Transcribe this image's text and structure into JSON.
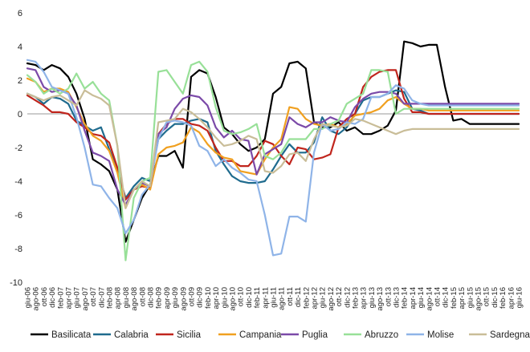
{
  "chart_data": {
    "type": "line",
    "title": "",
    "xlabel": "",
    "ylabel": "",
    "ylim": [
      -10,
      6
    ],
    "yticks": [
      -10,
      -8,
      -6,
      -4,
      -2,
      0,
      2,
      4,
      6
    ],
    "grid": false,
    "legend_position": "bottom",
    "x": [
      "giu-06",
      "ago-06",
      "ott-06",
      "dic-06",
      "feb-07",
      "apr-07",
      "giu-07",
      "ago-07",
      "ott-07",
      "dic-07",
      "feb-08",
      "apr-08",
      "giu-08",
      "ago-08",
      "ott-08",
      "dic-08",
      "feb-09",
      "apr-09",
      "giu-09",
      "ago-09",
      "ott-09",
      "dic-09",
      "feb-10",
      "apr-10",
      "giu-10",
      "ago-10",
      "ott-10",
      "dic-10",
      "feb-11",
      "apr-11",
      "giu-11",
      "ago-11",
      "ott-11",
      "dic-11",
      "feb-12",
      "apr-12",
      "giu-12",
      "ago-12",
      "ott-12",
      "dic-12",
      "feb-13",
      "apr-13",
      "giu-13",
      "ago-13",
      "ott-13",
      "dic-13",
      "feb-14",
      "apr-14",
      "giu-14",
      "ago-14",
      "ott-14",
      "dic-14",
      "feb-15",
      "apr-15",
      "giu-15",
      "ago-15",
      "ott-15",
      "dic-15",
      "feb-16",
      "apr-16",
      "giu-16"
    ],
    "series": [
      {
        "name": "Basilicata",
        "color": "#000000",
        "values": [
          3.0,
          2.9,
          2.6,
          2.9,
          2.7,
          2.2,
          1.2,
          -0.3,
          -2.7,
          -3.0,
          -3.4,
          -4.5,
          -7.6,
          -6.3,
          -5.0,
          -4.2,
          -2.5,
          -2.5,
          -2.2,
          -3.2,
          2.2,
          2.6,
          2.4,
          1.0,
          -0.8,
          -1.2,
          -1.8,
          -2.2,
          -2.0,
          -1.5,
          1.2,
          1.6,
          3.0,
          3.1,
          2.7,
          -0.5,
          -0.8,
          -0.8,
          -0.5,
          -1.0,
          -0.8,
          -1.2,
          -1.2,
          -1.0,
          -0.7,
          0.2,
          4.3,
          4.2,
          4.0,
          4.1,
          4.1,
          1.6,
          -0.4,
          -0.3,
          -0.6,
          -0.6,
          -0.6,
          -0.6,
          -0.6,
          -0.6,
          -0.6
        ]
      },
      {
        "name": "Calabria",
        "color": "#1f6b8e",
        "values": [
          1.2,
          1.0,
          0.6,
          1.0,
          0.9,
          0.6,
          -0.4,
          -0.7,
          -1.0,
          -0.8,
          -2.1,
          -3.3,
          -5.0,
          -4.3,
          -3.8,
          -4.0,
          -1.5,
          -1.0,
          -0.6,
          -0.6,
          -0.4,
          -0.3,
          -0.5,
          -2.2,
          -3.0,
          -3.7,
          -4.0,
          -4.1,
          -4.1,
          -4.0,
          -3.3,
          -2.5,
          -1.8,
          -2.3,
          -2.3,
          -1.7,
          -0.2,
          -1.0,
          -1.2,
          -0.8,
          0.0,
          0.8,
          1.0,
          1.0,
          1.2,
          1.4,
          1.3,
          0.3,
          0.2,
          0.0,
          0.0,
          0.0,
          0.0,
          0.0,
          0.0,
          0.0,
          0.0,
          0.0,
          0.0,
          0.0,
          0.0
        ]
      },
      {
        "name": "Sicilia",
        "color": "#c0251d",
        "values": [
          1.1,
          0.8,
          0.5,
          0.1,
          0.1,
          0.0,
          -0.5,
          -0.8,
          -1.2,
          -1.3,
          -1.7,
          -3.2,
          -5.1,
          -4.5,
          -4.3,
          -4.4,
          -1.2,
          -0.6,
          -0.3,
          -0.3,
          -0.6,
          -0.7,
          -1.0,
          -2.0,
          -2.8,
          -2.8,
          -3.1,
          -3.1,
          -2.5,
          -1.6,
          -1.8,
          -2.5,
          -3.0,
          -2.0,
          -2.1,
          -2.7,
          -2.6,
          -2.4,
          -0.8,
          -0.3,
          0.0,
          1.6,
          2.2,
          2.5,
          2.6,
          2.6,
          0.9,
          0.1,
          0.1,
          0.0,
          0.0,
          0.0,
          0.0,
          0.0,
          0.0,
          0.0,
          0.0,
          0.0,
          0.0,
          0.0,
          0.0
        ]
      },
      {
        "name": "Campania",
        "color": "#f0a020",
        "values": [
          2.1,
          1.9,
          1.3,
          1.5,
          1.5,
          1.3,
          0.4,
          -0.6,
          -1.3,
          -1.6,
          -2.2,
          -3.5,
          -5.6,
          -4.5,
          -4.2,
          -4.5,
          -2.4,
          -2.0,
          -1.9,
          -1.7,
          -0.8,
          -1.1,
          -1.8,
          -2.3,
          -2.6,
          -2.7,
          -3.4,
          -3.5,
          -3.6,
          -2.7,
          -2.0,
          -1.5,
          0.4,
          0.3,
          -0.3,
          -0.6,
          -0.7,
          -0.6,
          -0.8,
          -0.6,
          -0.1,
          0.0,
          0.1,
          0.3,
          0.8,
          1.0,
          0.6,
          0.3,
          0.3,
          0.2,
          0.2,
          0.2,
          0.2,
          0.2,
          0.2,
          0.2,
          0.2,
          0.2,
          0.2,
          0.2,
          0.2
        ]
      },
      {
        "name": "Puglia",
        "color": "#7b4aa8",
        "values": [
          2.7,
          2.6,
          1.6,
          1.3,
          1.4,
          1.2,
          0.5,
          -1.0,
          -2.3,
          -2.5,
          -2.8,
          -4.5,
          -5.4,
          -4.5,
          -4.1,
          -4.3,
          -1.2,
          -0.8,
          0.3,
          0.9,
          1.1,
          1.0,
          0.5,
          -0.8,
          -1.4,
          -1.0,
          -1.5,
          -1.6,
          -3.6,
          -2.4,
          -2.1,
          -1.8,
          -0.2,
          -0.6,
          -0.8,
          -0.5,
          -0.5,
          -0.2,
          -0.4,
          -0.5,
          0.4,
          0.9,
          1.2,
          1.3,
          1.3,
          1.2,
          0.6,
          0.6,
          0.6,
          0.6,
          0.6,
          0.6,
          0.6,
          0.6,
          0.6,
          0.6,
          0.6,
          0.6,
          0.6,
          0.6,
          0.6
        ]
      },
      {
        "name": "Abruzzo",
        "color": "#98e098",
        "values": [
          2.3,
          1.9,
          1.2,
          1.5,
          1.2,
          1.5,
          2.4,
          1.5,
          1.9,
          1.2,
          0.8,
          -1.9,
          -8.7,
          -5.0,
          -4.0,
          -3.8,
          2.5,
          2.6,
          1.9,
          1.2,
          2.9,
          3.1,
          2.5,
          0.4,
          -1.0,
          -1.2,
          -1.1,
          -0.9,
          -0.6,
          -2.5,
          -2.7,
          -2.3,
          -1.5,
          -1.5,
          -1.5,
          -0.9,
          -0.9,
          -0.6,
          -0.4,
          0.6,
          0.9,
          1.2,
          2.6,
          2.6,
          2.5,
          0.0,
          0.3,
          0.3,
          0.3,
          0.3,
          0.3,
          0.3,
          0.3,
          0.3,
          0.3,
          0.3,
          0.3,
          0.3,
          0.3,
          0.3,
          0.3
        ]
      },
      {
        "name": "Molise",
        "color": "#8fb4e8",
        "values": [
          3.2,
          3.1,
          2.5,
          1.6,
          1.4,
          1.2,
          -0.2,
          -2.0,
          -4.2,
          -4.3,
          -5.0,
          -5.6,
          -7.1,
          -6.3,
          -4.8,
          -4.2,
          -1.5,
          -0.5,
          -0.4,
          -0.5,
          -0.7,
          -1.9,
          -2.2,
          -3.1,
          -2.7,
          -3.2,
          -3.5,
          -3.9,
          -4.0,
          -6.0,
          -8.4,
          -8.3,
          -6.1,
          -6.1,
          -6.4,
          -2.3,
          -0.6,
          -1.0,
          -0.9,
          -0.5,
          -0.6,
          -0.3,
          1.0,
          1.0,
          1.2,
          1.7,
          1.5,
          0.8,
          0.6,
          0.5,
          0.5,
          0.5,
          0.5,
          0.5,
          0.5,
          0.5,
          0.5,
          0.5,
          0.5,
          0.5,
          0.5
        ]
      },
      {
        "name": "Sardegna",
        "color": "#c9bd98",
        "values": [
          1.2,
          1.0,
          0.8,
          1.0,
          1.1,
          0.8,
          0.5,
          1.4,
          1.1,
          0.9,
          0.5,
          -1.9,
          -5.6,
          -4.5,
          -4.0,
          -4.3,
          -0.5,
          -0.4,
          -0.3,
          0.3,
          0.1,
          -0.3,
          -0.8,
          -1.4,
          -1.9,
          -1.8,
          -1.6,
          -1.3,
          -1.5,
          -3.4,
          -3.5,
          -3.1,
          -2.4,
          -2.3,
          -2.8,
          -1.5,
          -0.6,
          -0.7,
          -0.8,
          -0.7,
          -0.3,
          -0.4,
          -0.6,
          -0.8,
          -1.0,
          -1.2,
          -1.0,
          -0.9,
          -0.9,
          -0.9,
          -0.9,
          -0.9,
          -0.9,
          -0.9,
          -0.9,
          -0.9,
          -0.9,
          -0.9,
          -0.9,
          -0.9,
          -0.9
        ]
      }
    ]
  }
}
